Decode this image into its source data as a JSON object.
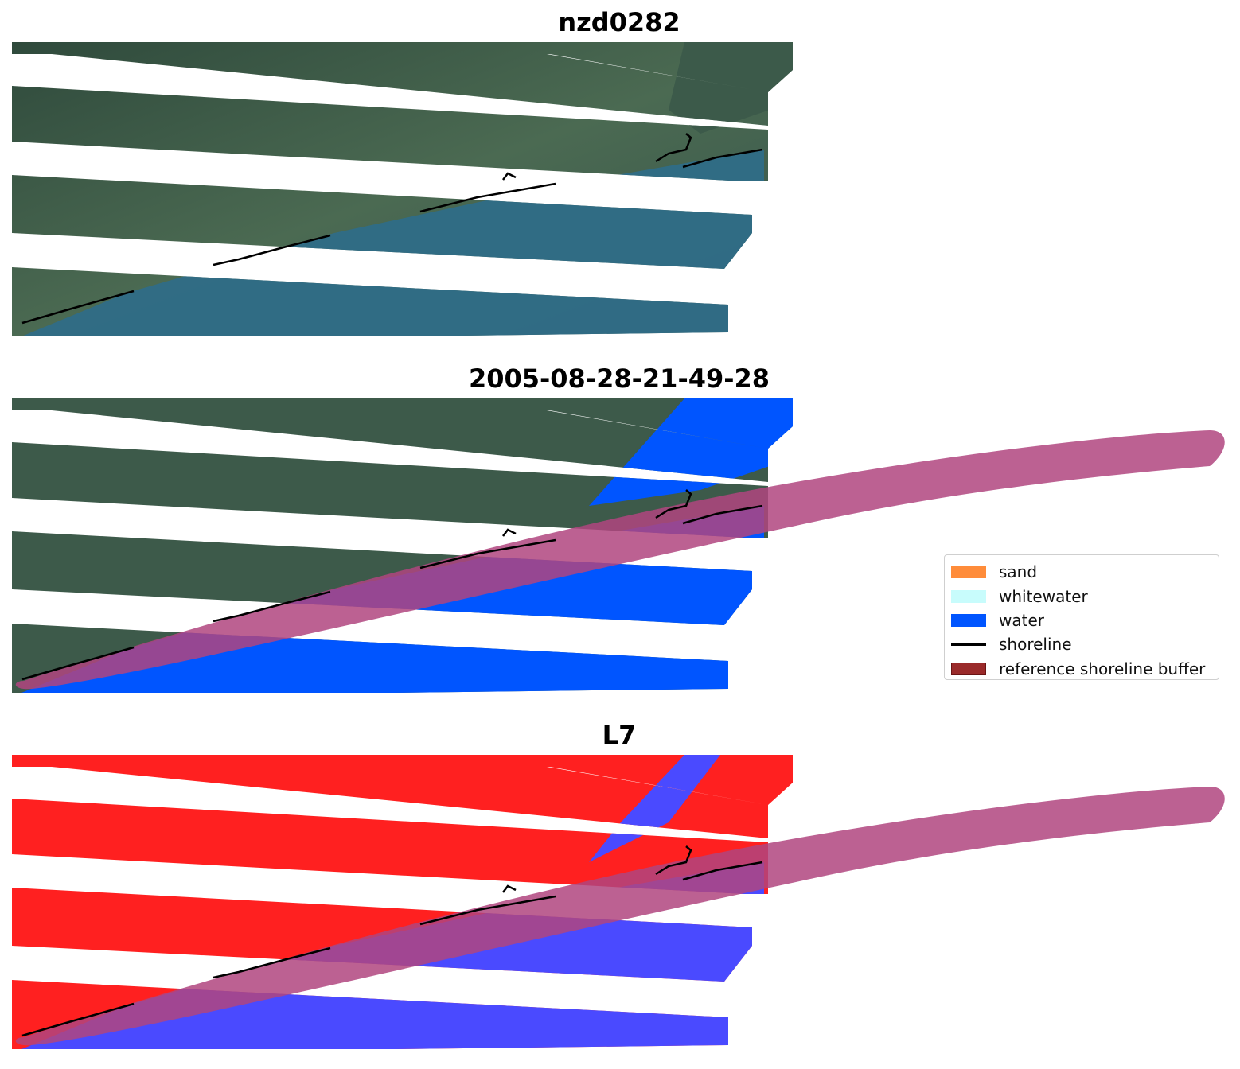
{
  "panels": [
    {
      "title": "nzd0282",
      "type": "rgb"
    },
    {
      "title": "2005-08-28-21-49-28",
      "type": "classified"
    },
    {
      "title": "L7",
      "type": "index"
    }
  ],
  "legend": {
    "items": [
      {
        "label": "sand",
        "color": "#ff8c3a",
        "kind": "patch"
      },
      {
        "label": "whitewater",
        "color": "#c8fcfc",
        "kind": "patch"
      },
      {
        "label": "water",
        "color": "#0055ff",
        "kind": "patch"
      },
      {
        "label": "shoreline",
        "color": "#000000",
        "kind": "line"
      },
      {
        "label": "reference shoreline buffer",
        "color": "#9a2a2a",
        "kind": "patch"
      }
    ]
  },
  "colors": {
    "land_rgb": "#3d5a4a",
    "water_rgb": "#2f6d87",
    "water_class": "#0055ff",
    "buffer": "#b0457f",
    "index_land": "#ff2020",
    "index_water": "#4a4aff"
  }
}
